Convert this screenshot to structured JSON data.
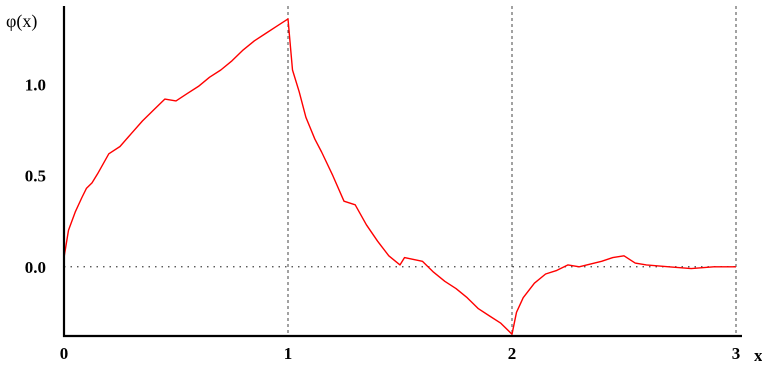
{
  "chart_data": {
    "type": "line",
    "title": "",
    "xlabel": "x",
    "ylabel": "φ(x)",
    "xlim": [
      0,
      3
    ],
    "ylim": [
      -0.38,
      1.42
    ],
    "x_ticks": [
      {
        "value": 0,
        "label": "0"
      },
      {
        "value": 1,
        "label": "1"
      },
      {
        "value": 2,
        "label": "2"
      },
      {
        "value": 3,
        "label": "3"
      }
    ],
    "y_ticks": [
      {
        "value": 0.0,
        "label": "0.0"
      },
      {
        "value": 0.5,
        "label": "0.5"
      },
      {
        "value": 1.0,
        "label": "1.0"
      }
    ],
    "grid": {
      "vertical_dashed_at": [
        1,
        2,
        3
      ],
      "horizontal_dotted_at": [
        0
      ]
    },
    "series": [
      {
        "color": "#ff0000",
        "x": [
          0.0,
          0.02,
          0.05,
          0.08,
          0.1,
          0.125,
          0.15,
          0.2,
          0.25,
          0.3,
          0.35,
          0.4,
          0.45,
          0.5,
          0.55,
          0.6,
          0.65,
          0.7,
          0.75,
          0.8,
          0.85,
          0.9,
          0.95,
          1.0,
          1.0,
          1.02,
          1.05,
          1.08,
          1.12,
          1.15,
          1.2,
          1.25,
          1.3,
          1.35,
          1.4,
          1.45,
          1.5,
          1.52,
          1.6,
          1.65,
          1.7,
          1.75,
          1.8,
          1.85,
          1.9,
          1.95,
          2.0,
          2.0,
          2.02,
          2.05,
          2.1,
          2.15,
          2.2,
          2.25,
          2.3,
          2.4,
          2.45,
          2.5,
          2.55,
          2.6,
          2.7,
          2.8,
          2.9,
          3.0
        ],
        "y": [
          0.05,
          0.2,
          0.3,
          0.38,
          0.43,
          0.46,
          0.51,
          0.62,
          0.66,
          0.73,
          0.8,
          0.86,
          0.92,
          0.91,
          0.95,
          0.99,
          1.04,
          1.08,
          1.13,
          1.19,
          1.24,
          1.28,
          1.32,
          1.36,
          1.36,
          1.08,
          0.96,
          0.82,
          0.7,
          0.63,
          0.5,
          0.36,
          0.34,
          0.23,
          0.14,
          0.06,
          0.01,
          0.05,
          0.03,
          -0.03,
          -0.08,
          -0.12,
          -0.17,
          -0.23,
          -0.27,
          -0.31,
          -0.37,
          -0.37,
          -0.25,
          -0.17,
          -0.09,
          -0.04,
          -0.02,
          0.01,
          0.0,
          0.03,
          0.05,
          0.06,
          0.02,
          0.01,
          0.0,
          -0.01,
          0.0,
          0.0
        ]
      }
    ]
  }
}
